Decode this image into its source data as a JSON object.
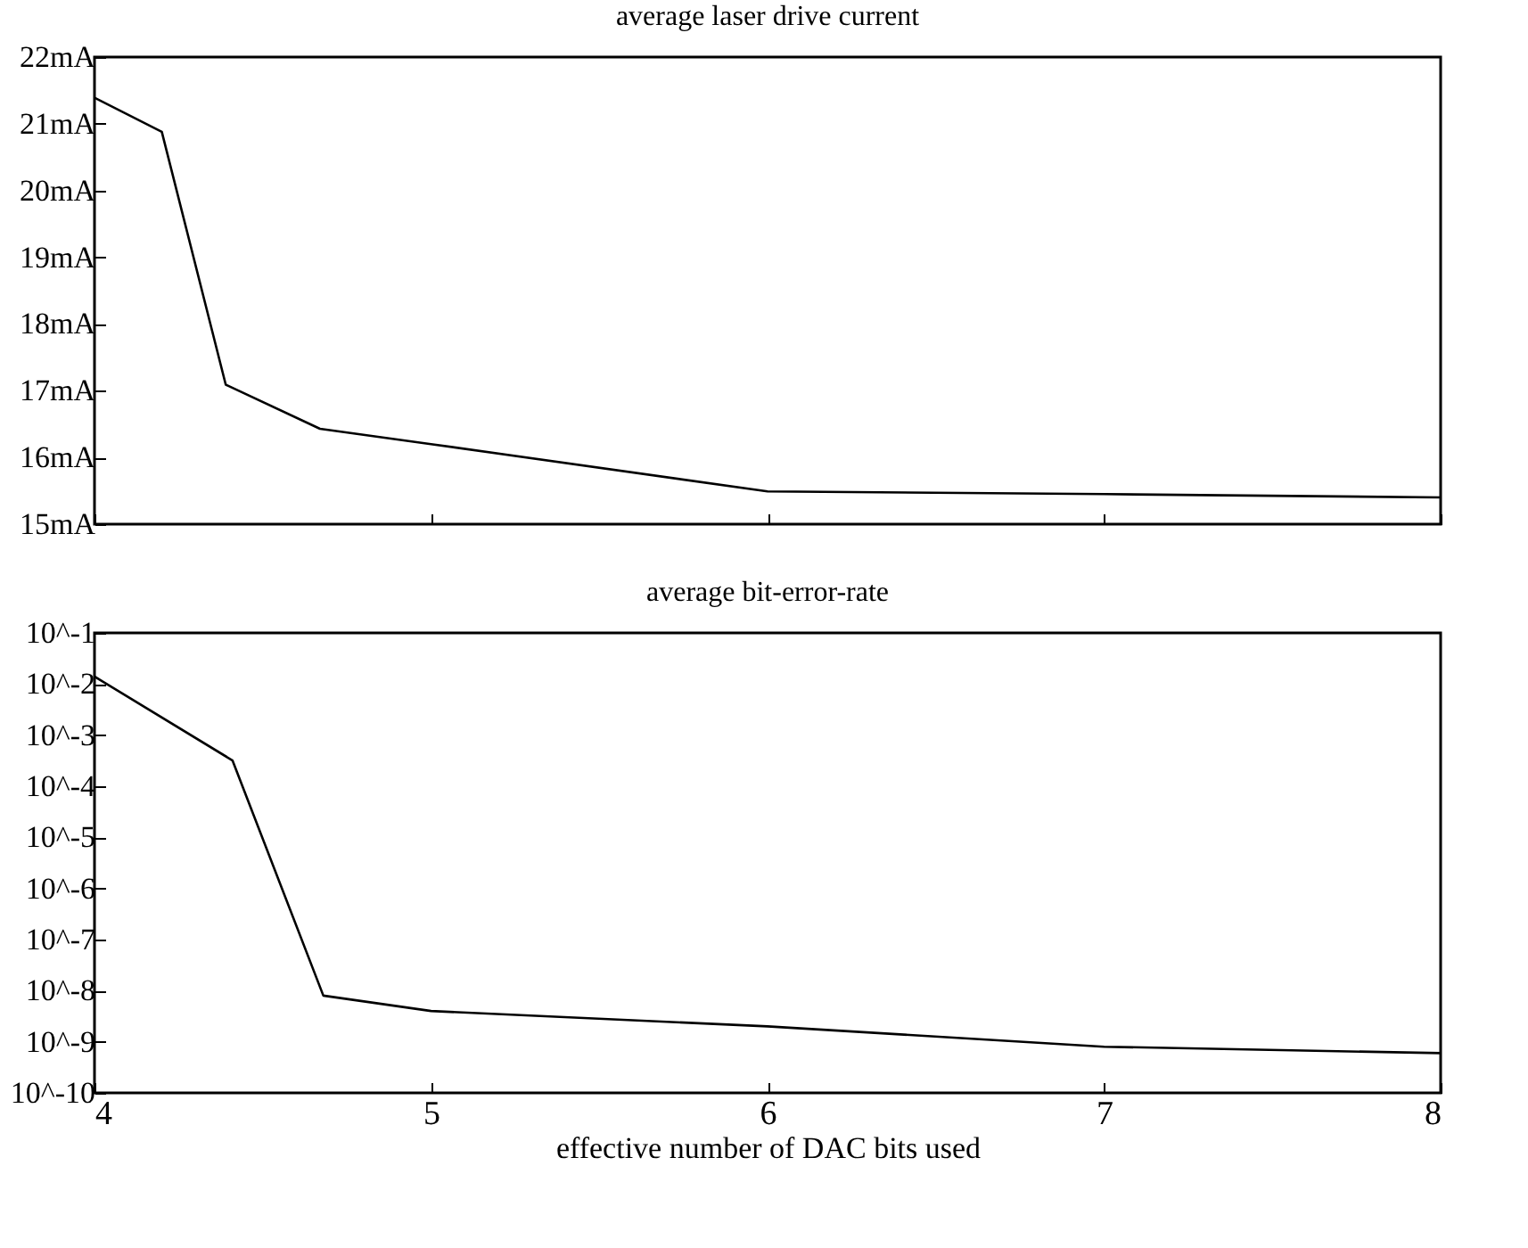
{
  "chart_data": [
    {
      "type": "line",
      "title": "average laser drive current",
      "x": [
        4,
        4.2,
        4.39,
        4.67,
        5,
        6,
        7,
        8
      ],
      "series": [
        {
          "color": "#000000",
          "values": [
            21.39,
            20.88,
            17.09,
            16.43,
            16.2,
            15.49,
            15.45,
            15.4
          ]
        }
      ],
      "xlim": [
        4,
        8
      ],
      "xticks": [
        4,
        5,
        6,
        7,
        8
      ],
      "ylim": [
        15,
        22
      ],
      "yticks": [
        {
          "value": 15,
          "label": "15mA"
        },
        {
          "value": 16,
          "label": "16mA"
        },
        {
          "value": 17,
          "label": "17mA"
        },
        {
          "value": 18,
          "label": "18mA"
        },
        {
          "value": 19,
          "label": "19mA"
        },
        {
          "value": 20,
          "label": "20mA"
        },
        {
          "value": 21,
          "label": "21mA"
        },
        {
          "value": 22,
          "label": "22mA"
        }
      ],
      "tick_labels": "y",
      "marker": "none",
      "line_style": "solid"
    },
    {
      "type": "line",
      "title": "average bit-error-rate",
      "xlabel": "effective number of DAC bits used",
      "x": [
        4,
        4.41,
        4.68,
        5,
        6,
        7,
        8
      ],
      "series": [
        {
          "color": "#000000",
          "values": [
            0.014,
            0.00032,
            8e-09,
            4e-09,
            2e-09,
            8e-10,
            6e-10
          ]
        }
      ],
      "xlim": [
        4,
        8
      ],
      "xticks": [
        4,
        5,
        6,
        7,
        8
      ],
      "ylim": [
        1e-10,
        0.1
      ],
      "log": true,
      "yticks": [
        {
          "value": 1e-10,
          "label": "10^-10"
        },
        {
          "value": 1e-09,
          "label": "10^-9"
        },
        {
          "value": 1e-08,
          "label": "10^-8"
        },
        {
          "value": 1e-07,
          "label": "10^-7"
        },
        {
          "value": 1e-06,
          "label": "10^-6"
        },
        {
          "value": 1e-05,
          "label": "10^-5"
        },
        {
          "value": 0.0001,
          "label": "10^-4"
        },
        {
          "value": 0.001,
          "label": "10^-3"
        },
        {
          "value": 0.01,
          "label": "10^-2"
        },
        {
          "value": 0.1,
          "label": "10^-1"
        }
      ],
      "marker": "none",
      "line_style": "solid"
    }
  ]
}
